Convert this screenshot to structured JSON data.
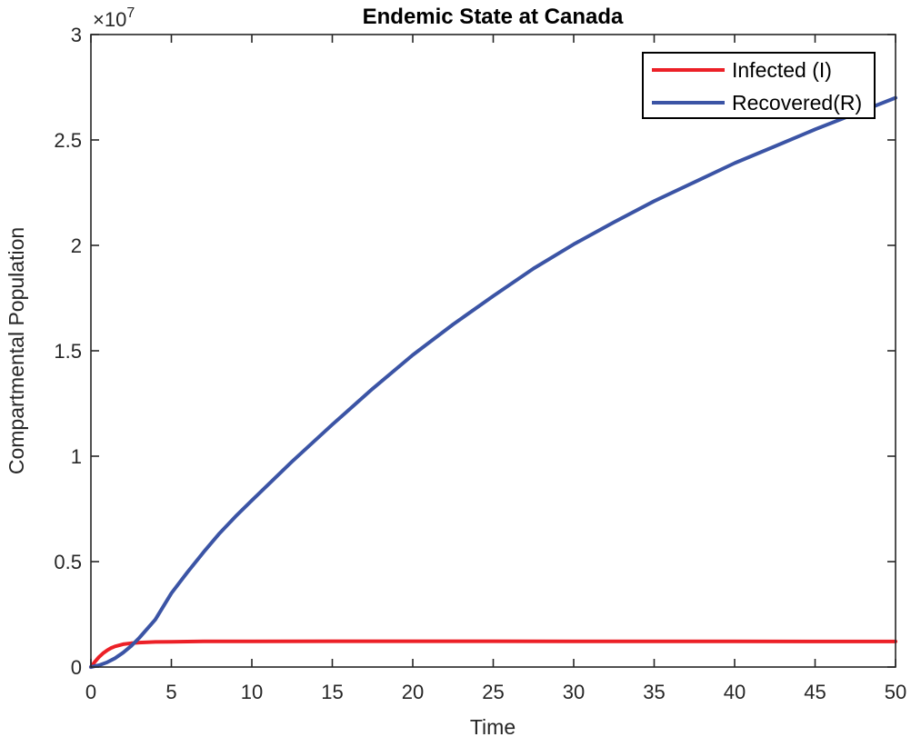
{
  "page": {
    "background": "#FFFFFF"
  },
  "chart_data": {
    "type": "line",
    "title": "Endemic State at Canada",
    "xlabel": "Time",
    "ylabel": "Compartmental Population",
    "y_axis_exponent": {
      "base": "×10",
      "power": "7"
    },
    "xlim": [
      0,
      50
    ],
    "ylim": [
      0,
      30000000
    ],
    "x_ticks": [
      0,
      5,
      10,
      15,
      20,
      25,
      30,
      35,
      40,
      45,
      50
    ],
    "x_tick_labels": [
      "0",
      "5",
      "10",
      "15",
      "20",
      "25",
      "30",
      "35",
      "40",
      "45",
      "50"
    ],
    "y_ticks": [
      0,
      5000000,
      10000000,
      15000000,
      20000000,
      25000000,
      30000000
    ],
    "y_tick_labels": [
      "0",
      "0.5",
      "1",
      "1.5",
      "2",
      "2.5",
      "3"
    ],
    "grid": false,
    "axis_color": "#262626",
    "legend": {
      "position": "top-right",
      "border_color": "#000000",
      "background": "#FFFFFF",
      "entries": [
        "Infected (I)",
        "Recovered(R)"
      ]
    },
    "series": [
      {
        "name": "Infected (I)",
        "color": "#EC2027",
        "x": [
          0,
          0.25,
          0.5,
          0.75,
          1,
          1.25,
          1.5,
          2,
          2.5,
          3,
          4,
          5,
          7,
          10,
          15,
          20,
          25,
          30,
          35,
          40,
          45,
          50
        ],
        "y": [
          0,
          250000,
          470000,
          650000,
          790000,
          900000,
          980000,
          1080000,
          1130000,
          1160000,
          1190000,
          1200000,
          1215000,
          1220000,
          1225000,
          1225000,
          1225000,
          1220000,
          1220000,
          1215000,
          1210000,
          1210000
        ]
      },
      {
        "name": "Recovered(R)",
        "color": "#3B54A5",
        "x": [
          0,
          0.5,
          1,
          1.5,
          2,
          2.5,
          3,
          4,
          5,
          6,
          7,
          8,
          9,
          10,
          12.5,
          15,
          17.5,
          20,
          22.5,
          25,
          27.5,
          30,
          32.5,
          35,
          37.5,
          40,
          42.5,
          45,
          47.5,
          50
        ],
        "y": [
          0,
          80000,
          220000,
          420000,
          680000,
          1000000,
          1380000,
          2250000,
          3500000,
          4500000,
          5450000,
          6350000,
          7150000,
          7900000,
          9750000,
          11500000,
          13200000,
          14800000,
          16250000,
          17600000,
          18900000,
          20050000,
          21100000,
          22100000,
          23000000,
          23900000,
          24700000,
          25500000,
          26250000,
          27000000
        ]
      }
    ]
  }
}
